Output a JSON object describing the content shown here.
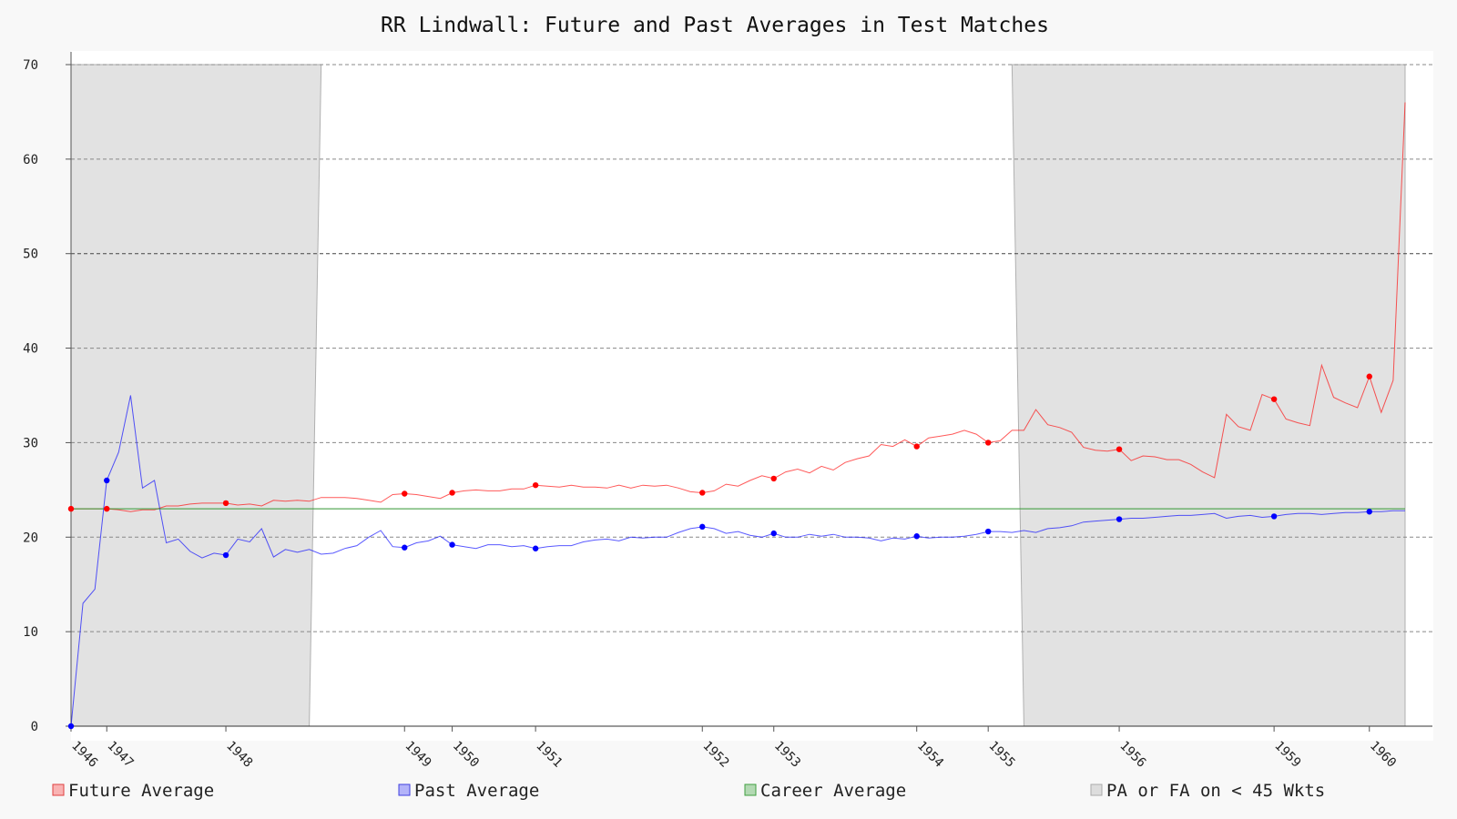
{
  "chart_data": {
    "type": "line",
    "title": "RR Lindwall: Future and Past Averages in Test Matches",
    "xlabel": "",
    "ylabel": "",
    "ylim": [
      0,
      70
    ],
    "yticks": [
      0,
      10,
      20,
      30,
      40,
      50,
      60,
      70
    ],
    "grid": true,
    "legend_position": "bottom",
    "x_tick_labels": [
      {
        "label": "1946",
        "index": 0
      },
      {
        "label": "1947",
        "index": 3
      },
      {
        "label": "1948",
        "index": 13
      },
      {
        "label": "1949",
        "index": 28
      },
      {
        "label": "1950",
        "index": 32
      },
      {
        "label": "1951",
        "index": 39
      },
      {
        "label": "1952",
        "index": 53
      },
      {
        "label": "1953",
        "index": 59
      },
      {
        "label": "1954",
        "index": 71
      },
      {
        "label": "1955",
        "index": 77
      },
      {
        "label": "1956",
        "index": 88
      },
      {
        "label": "1959",
        "index": 101
      },
      {
        "label": "1960",
        "index": 109
      }
    ],
    "x_count": 113,
    "series": [
      {
        "name": "Future Average",
        "color": "#ff0000",
        "marker_indices": [
          0,
          3,
          13,
          28,
          32,
          39,
          53,
          59,
          71,
          77,
          88,
          101,
          109
        ],
        "values": [
          23.0,
          23.0,
          23.0,
          23.0,
          22.9,
          22.7,
          22.9,
          22.9,
          23.3,
          23.3,
          23.5,
          23.6,
          23.6,
          23.6,
          23.4,
          23.5,
          23.3,
          23.9,
          23.8,
          23.9,
          23.8,
          24.2,
          24.2,
          24.2,
          24.1,
          23.9,
          23.7,
          24.5,
          24.6,
          24.5,
          24.3,
          24.1,
          24.7,
          24.9,
          25.0,
          24.9,
          24.9,
          25.1,
          25.1,
          25.5,
          25.4,
          25.3,
          25.5,
          25.3,
          25.3,
          25.2,
          25.5,
          25.2,
          25.5,
          25.4,
          25.5,
          25.2,
          24.8,
          24.7,
          24.9,
          25.6,
          25.4,
          26.0,
          26.5,
          26.2,
          26.9,
          27.2,
          26.8,
          27.5,
          27.1,
          27.9,
          28.3,
          28.6,
          29.8,
          29.6,
          30.3,
          29.6,
          30.5,
          30.7,
          30.9,
          31.3,
          30.9,
          30.0,
          30.2,
          31.3,
          31.3,
          33.5,
          31.9,
          31.6,
          31.1,
          29.5,
          29.2,
          29.1,
          29.3,
          28.1,
          28.6,
          28.5,
          28.2,
          28.2,
          27.7,
          26.9,
          26.3,
          33.0,
          31.7,
          31.3,
          35.1,
          34.6,
          32.5,
          32.1,
          31.8,
          38.2,
          34.8,
          34.2,
          33.7,
          37.0,
          33.2,
          36.6,
          66.0
        ]
      },
      {
        "name": "Past Average",
        "color": "#0000ff",
        "marker_indices": [
          0,
          3,
          13,
          28,
          32,
          39,
          53,
          59,
          71,
          77,
          88,
          101,
          109
        ],
        "values": [
          0.0,
          13.0,
          14.5,
          26.0,
          29.0,
          35.0,
          25.2,
          26.0,
          19.4,
          19.8,
          18.5,
          17.8,
          18.3,
          18.1,
          19.8,
          19.5,
          20.9,
          17.9,
          18.7,
          18.4,
          18.7,
          18.2,
          18.3,
          18.8,
          19.1,
          20.0,
          20.7,
          19.0,
          18.9,
          19.4,
          19.6,
          20.1,
          19.2,
          19.0,
          18.8,
          19.2,
          19.2,
          19.0,
          19.1,
          18.8,
          19.0,
          19.1,
          19.1,
          19.5,
          19.7,
          19.8,
          19.6,
          20.0,
          19.9,
          20.0,
          20.0,
          20.5,
          20.9,
          21.1,
          20.9,
          20.4,
          20.6,
          20.2,
          20.0,
          20.4,
          20.0,
          20.0,
          20.3,
          20.1,
          20.3,
          20.0,
          20.0,
          19.9,
          19.6,
          19.9,
          19.8,
          20.1,
          19.9,
          20.0,
          20.0,
          20.1,
          20.3,
          20.6,
          20.6,
          20.5,
          20.7,
          20.5,
          20.9,
          21.0,
          21.2,
          21.6,
          21.7,
          21.8,
          21.9,
          22.0,
          22.0,
          22.1,
          22.2,
          22.3,
          22.3,
          22.4,
          22.5,
          22.0,
          22.2,
          22.3,
          22.1,
          22.2,
          22.4,
          22.5,
          22.5,
          22.4,
          22.5,
          22.6,
          22.6,
          22.7,
          22.7,
          22.8,
          22.8
        ]
      },
      {
        "name": "Career Average",
        "color": "#3c9c3c",
        "values": [
          23.0
        ]
      }
    ],
    "shaded_regions": [
      {
        "name": "PA or FA on < 45 Wkts",
        "x_top": [
          0,
          21
        ],
        "x_bottom": [
          0,
          20
        ]
      },
      {
        "name": "PA or FA on < 45 Wkts",
        "x_top": [
          79,
          112
        ],
        "x_bottom": [
          80,
          112
        ]
      }
    ],
    "legend": [
      {
        "label": "Future Average",
        "fill": "#f9b3b3",
        "stroke": "#e04040"
      },
      {
        "label": "Past Average",
        "fill": "#b3b3f9",
        "stroke": "#4040e0"
      },
      {
        "label": "Career Average",
        "fill": "#b3d9b3",
        "stroke": "#40a040"
      },
      {
        "label": "PA or FA on < 45 Wkts",
        "fill": "#dddddd",
        "stroke": "#aaaaaa"
      }
    ]
  }
}
